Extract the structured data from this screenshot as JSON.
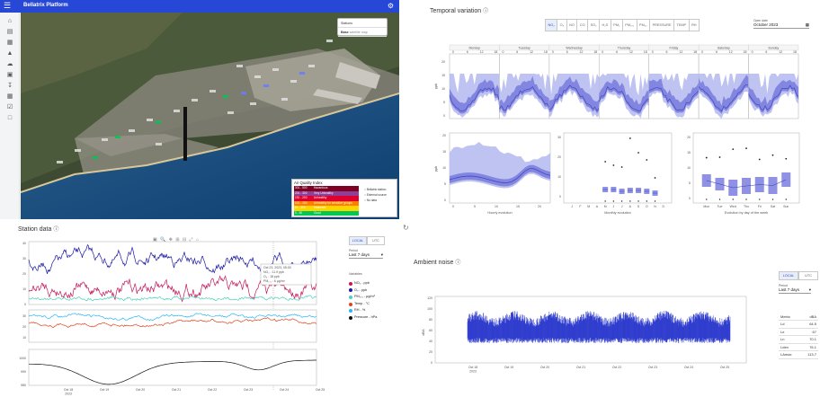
{
  "app": {
    "title": "Bellatrix Platform"
  },
  "map": {
    "layer_station": "Stations",
    "layer_base": "Base",
    "layer_base_sub": "satellite map",
    "legend_title": "Air Quality Index",
    "legend_rows": [
      {
        "range": "301 - 500",
        "label": "Hazardous",
        "color": "#7e0023"
      },
      {
        "range": "201 - 300",
        "label": "Very Unhealthy",
        "color": "#8f3f97"
      },
      {
        "range": "151 - 200",
        "label": "Unhealthy",
        "color": "#e0002d"
      },
      {
        "range": "101 - 150",
        "label": "Unhealthy for sensitive groups",
        "color": "#ff7e00"
      },
      {
        "range": "51 - 100",
        "label": "Moderate",
        "color": "#ffd500"
      },
      {
        "range": "0 - 50",
        "label": "Good",
        "color": "#00c853"
      }
    ],
    "legend_markers": [
      "Bellatrix station",
      "External source",
      "No data"
    ]
  },
  "temporal": {
    "title": "Temporal variation",
    "pollutants": [
      "NO₂",
      "O₃",
      "NO",
      "CO",
      "SO₂",
      "H₂S",
      "PM₁",
      "PM₂.₅",
      "PM₁₀",
      "PRESSURE",
      "TEMP",
      "RH"
    ],
    "active_pollutant": "NO₂",
    "period_label": "Open date",
    "period_value": "October 2023",
    "days": [
      "Monday",
      "Tuesday",
      "Wednesday",
      "Thursday",
      "Friday",
      "Saturday",
      "Sunday"
    ],
    "hour_ticks": [
      "0",
      "6",
      "12",
      "18"
    ],
    "ylabel": "ppb",
    "hourly_xlabel": "Hourly evolution",
    "monthly_xlabel": "Monthly evolution",
    "weekday_xlabel": "Evolution by day of the week",
    "month_ticks": [
      "J",
      "F",
      "M",
      "A",
      "M",
      "J",
      "J",
      "A",
      "S",
      "O",
      "N",
      "D"
    ],
    "weekday_ticks": [
      "Mon",
      "Tue",
      "Wed",
      "Thu",
      "Fri",
      "Sat",
      "Sun"
    ]
  },
  "station": {
    "title": "Station data",
    "tz_local": "LOCAL",
    "tz_utc": "UTC",
    "period_label": "Period",
    "period_value": "Last 7 days",
    "variables_label": "Variables",
    "variables": [
      {
        "name": "NO₂ - ppb",
        "color": "#c2185b"
      },
      {
        "name": "O₃ - ppb",
        "color": "#1a1aa6"
      },
      {
        "name": "PM₂.₅ - µg/m³",
        "color": "#4dd0c0"
      },
      {
        "name": "Temp - °C",
        "color": "#e0421d"
      },
      {
        "name": "RH - %",
        "color": "#29b6f6"
      },
      {
        "name": "Pressure - hPa",
        "color": "#111111"
      }
    ],
    "tooltip": [
      "Oct 23, 2023, 05:00",
      "NO₂ : 11.9 ppb",
      "O₃ : 18 ppb",
      "PM₂.₅ : 6 µg/m³"
    ],
    "date_ticks": [
      "Oct 18\n2023",
      "Oct 19",
      "Oct 20",
      "Oct 21",
      "Oct 22",
      "Oct 23",
      "Oct 24",
      "Oct 25"
    ]
  },
  "noise": {
    "title": "Ambient noise",
    "tz_local": "LOCAL",
    "tz_utc": "UTC",
    "period_label": "Period",
    "period_value": "Last 7 days",
    "ylabel": "dBA",
    "date_ticks": [
      "Oct 18\n2023",
      "Oct 19",
      "Oct 20",
      "Oct 21",
      "Oct 22",
      "Oct 23",
      "Oct 24",
      "Oct 25"
    ],
    "metrics_header": [
      "Metric",
      "dBA"
    ],
    "metrics": [
      {
        "name": "Ld",
        "value": "64.5"
      },
      {
        "name": "Le",
        "value": "67"
      },
      {
        "name": "Ln",
        "value": "70.1"
      },
      {
        "name": "Lden",
        "value": "76.1"
      },
      {
        "name": "LAmax",
        "value": "113.7"
      }
    ]
  },
  "colors": {
    "accent": "#2747d6",
    "band": "#b4b8ef",
    "band_dark": "#7b7fdf",
    "line": "#3c3fb5",
    "noise": "#1a28c8"
  }
}
